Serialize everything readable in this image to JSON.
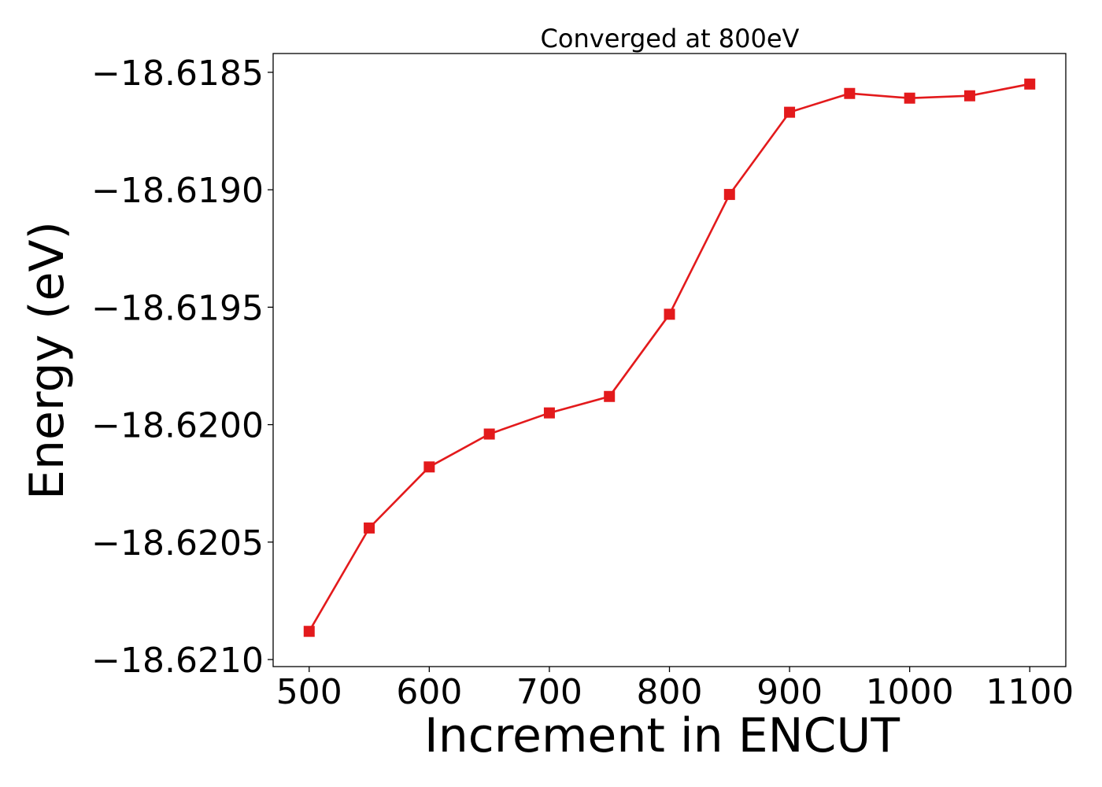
{
  "chart_data": {
    "type": "line",
    "title": "Converged at 800eV",
    "xlabel": "Increment in ENCUT",
    "ylabel": "Energy (eV)",
    "xlim": [
      470,
      1130
    ],
    "ylim": [
      -18.62103,
      -18.61842
    ],
    "xticks": [
      500,
      600,
      700,
      800,
      900,
      1000,
      1100
    ],
    "xtick_labels": [
      "500",
      "600",
      "700",
      "800",
      "900",
      "1000",
      "1100"
    ],
    "yticks": [
      -18.6185,
      -18.619,
      -18.6195,
      -18.62,
      -18.6205,
      -18.621
    ],
    "ytick_labels": [
      "−18.6185",
      "−18.6190",
      "−18.6195",
      "−18.6200",
      "−18.6205",
      "−18.6210"
    ],
    "grid": false,
    "series": [
      {
        "color": "#e31a1c",
        "marker": "square",
        "x": [
          500,
          550,
          600,
          650,
          700,
          750,
          800,
          850,
          900,
          950,
          1000,
          1050,
          1100
        ],
        "y": [
          -18.62088,
          -18.62044,
          -18.62018,
          -18.62004,
          -18.61995,
          -18.61988,
          -18.61953,
          -18.61902,
          -18.61867,
          -18.61859,
          -18.61861,
          -18.6186,
          -18.61855
        ]
      }
    ]
  }
}
